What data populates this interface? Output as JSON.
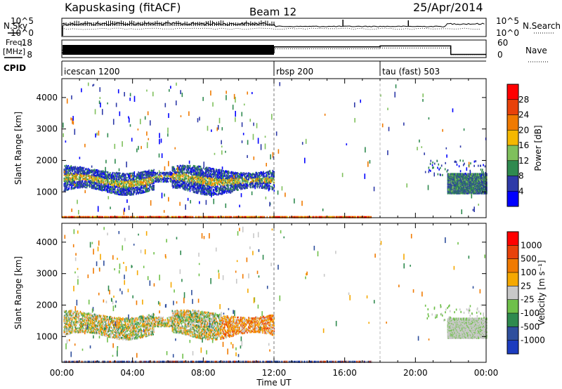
{
  "header": {
    "station": "Kapuskasing (fitACF)",
    "beam": "Beam 12",
    "date": "25/Apr/2014"
  },
  "noise_panel": {
    "left_label": "N.Sky",
    "right_label": "N.Search",
    "tick_top": "10^5",
    "tick_bottom": "10^0"
  },
  "freq_panel": {
    "left_label_line1": "Freq.",
    "left_label_line2": "[MHz]",
    "left_ticks": [
      "18",
      "8"
    ],
    "right_label": "Nave",
    "right_ticks": [
      "60",
      "0"
    ]
  },
  "cpid": {
    "label": "CPID",
    "segments": [
      {
        "start_hour": 0,
        "name": "icescan 1200"
      },
      {
        "start_hour": 12,
        "name": "rbsp 200"
      },
      {
        "start_hour": 18,
        "name": "tau (fast) 503"
      }
    ]
  },
  "time_axis": {
    "xlabel": "Time UT",
    "ticks": [
      "00:00",
      "04:00",
      "08:00",
      "12:00",
      "16:00",
      "20:00",
      "00:00"
    ],
    "range_hours": [
      0,
      24
    ]
  },
  "panels": {
    "power": {
      "ylabel": "Slant Range [km]",
      "yticks": [
        "1000",
        "2000",
        "3000",
        "4000"
      ],
      "colorbar_label": "Power [dB]",
      "colorbar_ticks": [
        "4",
        "8",
        "12",
        "16",
        "20",
        "24",
        "28"
      ],
      "colors": [
        "#0000ff",
        "#2e3aa8",
        "#2f8a4f",
        "#7fc05c",
        "#f5b800",
        "#f07a00",
        "#e8420a",
        "#ff0000"
      ]
    },
    "velocity": {
      "ylabel": "Slant Range [km]",
      "yticks": [
        "1000",
        "2000",
        "3000",
        "4000"
      ],
      "colorbar_label": "Velocity [m s⁻¹]",
      "colorbar_ticks": [
        "1000",
        "500",
        "100",
        "25",
        "-25",
        "-100",
        "-500",
        "-1000"
      ],
      "colors": [
        "#1c3cbf",
        "#2f4f9d",
        "#2f8a4f",
        "#6fc04a",
        "#c8c8c8",
        "#f5a800",
        "#f07a00",
        "#e8420a",
        "#ff0000"
      ]
    }
  },
  "chart_data": [
    {
      "type": "line",
      "title": "Kapuskasing (fitACF)",
      "panel": "noise",
      "series": [
        {
          "name": "N.Sky"
        },
        {
          "name": "N.Search"
        }
      ],
      "ylim_log10": [
        0,
        5
      ]
    },
    {
      "type": "line",
      "panel": "frequency / nave",
      "x": [
        0,
        12,
        18,
        22,
        24
      ],
      "series": [
        {
          "name": "Freq.",
          "values": [
            10.5,
            14.2,
            14.8,
            9.5,
            9.5
          ]
        },
        {
          "name": "Nave",
          "values": [
            25,
            30,
            33,
            8,
            8
          ]
        }
      ]
    },
    {
      "type": "heatmap",
      "panel": "Power [dB]",
      "xlabel": "Time UT",
      "ylabel": "Slant Range [km]",
      "xlim": [
        0,
        24
      ],
      "ylim": [
        180,
        4600
      ],
      "clim": [
        0,
        32
      ],
      "echo_regions": [
        {
          "t": [
            0,
            12
          ],
          "range_km": [
            1000,
            1900
          ],
          "power_db": [
            6,
            22
          ]
        },
        {
          "t": [
            0,
            17.5
          ],
          "range_km": [
            180,
            240
          ],
          "power_db": [
            4,
            30
          ]
        },
        {
          "t": [
            21.8,
            24
          ],
          "range_km": [
            1000,
            1600
          ],
          "power_db": [
            6,
            12
          ]
        }
      ]
    },
    {
      "type": "heatmap",
      "panel": "Velocity [m s^-1]",
      "xlabel": "Time UT",
      "ylabel": "Slant Range [km]",
      "xlim": [
        0,
        24
      ],
      "ylim": [
        180,
        4600
      ],
      "clim": [
        -1000,
        1000
      ],
      "echo_regions": [
        {
          "t": [
            0,
            12
          ],
          "range_km": [
            1000,
            1900
          ],
          "velocity": [
            -500,
            500
          ]
        },
        {
          "t": [
            21.8,
            24
          ],
          "range_km": [
            1000,
            1600
          ],
          "velocity": [
            -25,
            25
          ]
        }
      ]
    }
  ]
}
